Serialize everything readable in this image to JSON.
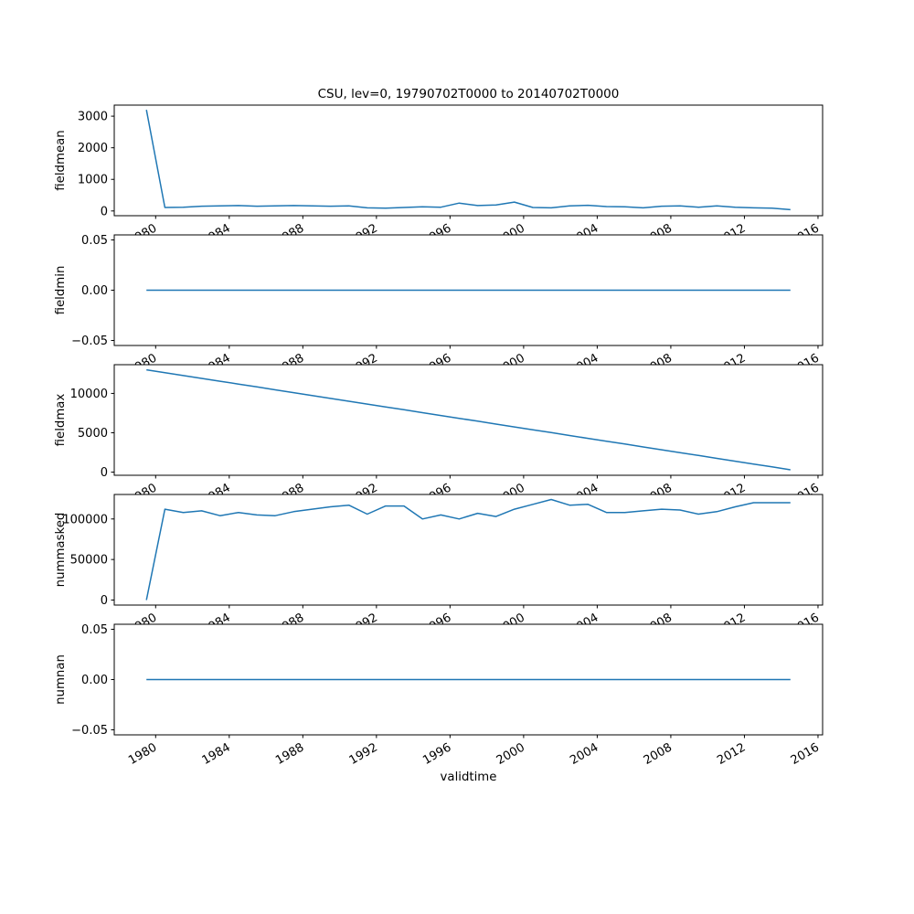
{
  "chart_data": {
    "type": "line",
    "title": "CSU, lev=0, 19790702T0000 to 20140702T0000",
    "xlabel": "validtime",
    "line_color": "#1f77b4",
    "xlim": [
      1977.75,
      2016.25
    ],
    "x_ticks": [
      1980,
      1984,
      1988,
      1992,
      1996,
      2000,
      2004,
      2008,
      2012,
      2016
    ],
    "x_tick_labels": [
      "1980",
      "1984",
      "1988",
      "1992",
      "1996",
      "2000",
      "2004",
      "2008",
      "2012",
      "2016"
    ],
    "x": [
      1979.5,
      1980.5,
      1981.5,
      1982.5,
      1983.5,
      1984.5,
      1985.5,
      1986.5,
      1987.5,
      1988.5,
      1989.5,
      1990.5,
      1991.5,
      1992.5,
      1993.5,
      1994.5,
      1995.5,
      1996.5,
      1997.5,
      1998.5,
      1999.5,
      2000.5,
      2001.5,
      2002.5,
      2003.5,
      2004.5,
      2005.5,
      2006.5,
      2007.5,
      2008.5,
      2009.5,
      2010.5,
      2011.5,
      2012.5,
      2013.5,
      2014.5
    ],
    "subplots": [
      {
        "ylabel": "fieldmean",
        "ylim": [
          -150,
          3350
        ],
        "yticks": [
          0,
          1000,
          2000,
          3000
        ],
        "ytick_labels": [
          "0",
          "1000",
          "2000",
          "3000"
        ],
        "values": [
          3200,
          110,
          120,
          150,
          160,
          170,
          150,
          160,
          170,
          160,
          150,
          160,
          100,
          90,
          110,
          130,
          120,
          250,
          170,
          190,
          280,
          110,
          100,
          160,
          180,
          140,
          130,
          100,
          150,
          160,
          120,
          160,
          120,
          100,
          90,
          40
        ]
      },
      {
        "ylabel": "fieldmin",
        "ylim": [
          -0.055,
          0.055
        ],
        "yticks": [
          -0.05,
          0.0,
          0.05
        ],
        "ytick_labels": [
          "−0.05",
          "0.00",
          "0.05"
        ],
        "values": [
          0,
          0,
          0,
          0,
          0,
          0,
          0,
          0,
          0,
          0,
          0,
          0,
          0,
          0,
          0,
          0,
          0,
          0,
          0,
          0,
          0,
          0,
          0,
          0,
          0,
          0,
          0,
          0,
          0,
          0,
          0,
          0,
          0,
          0,
          0,
          0
        ]
      },
      {
        "ylabel": "fieldmax",
        "ylim": [
          -400,
          13650
        ],
        "yticks": [
          0,
          5000,
          10000
        ],
        "ytick_labels": [
          "0",
          "5000",
          "10000"
        ],
        "values": [
          13000,
          12637,
          12274,
          11911,
          11549,
          11186,
          10823,
          10460,
          10097,
          9734,
          9371,
          9009,
          8646,
          8283,
          7920,
          7557,
          7194,
          6831,
          6469,
          6106,
          5743,
          5380,
          5017,
          4654,
          4291,
          3929,
          3566,
          3203,
          2840,
          2477,
          2114,
          1751,
          1389,
          1026,
          663,
          300
        ]
      },
      {
        "ylabel": "nummasked",
        "ylim": [
          -6200,
          130200
        ],
        "yticks": [
          0,
          50000,
          100000
        ],
        "ytick_labels": [
          "0",
          "50000",
          "100000"
        ],
        "values": [
          0,
          112000,
          108000,
          110000,
          104000,
          108000,
          105000,
          104000,
          109000,
          112000,
          115000,
          117000,
          106000,
          116000,
          116000,
          100000,
          105000,
          100000,
          107000,
          103000,
          112000,
          118000,
          124000,
          117000,
          118000,
          108000,
          108000,
          110000,
          112000,
          111000,
          106000,
          109000,
          115000,
          120000,
          120000,
          120000
        ]
      },
      {
        "ylabel": "numnan",
        "ylim": [
          -0.055,
          0.055
        ],
        "yticks": [
          -0.05,
          0.0,
          0.05
        ],
        "ytick_labels": [
          "−0.05",
          "0.00",
          "0.05"
        ],
        "values": [
          0,
          0,
          0,
          0,
          0,
          0,
          0,
          0,
          0,
          0,
          0,
          0,
          0,
          0,
          0,
          0,
          0,
          0,
          0,
          0,
          0,
          0,
          0,
          0,
          0,
          0,
          0,
          0,
          0,
          0,
          0,
          0,
          0,
          0,
          0,
          0
        ]
      }
    ]
  }
}
